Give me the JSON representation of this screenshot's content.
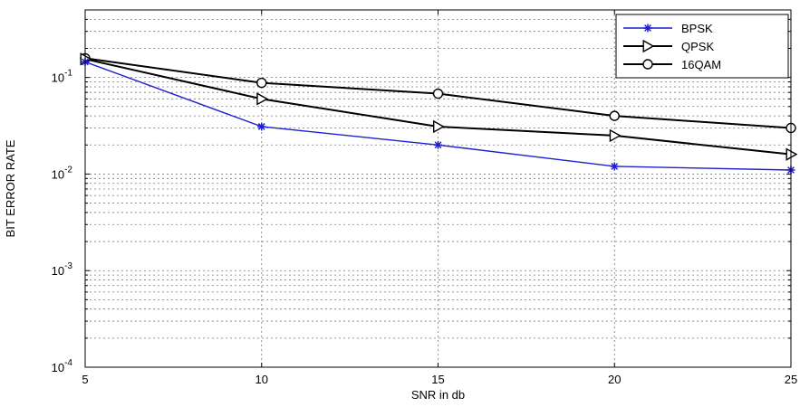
{
  "chart_data": {
    "type": "line",
    "title": "",
    "xlabel": "SNR in db",
    "ylabel": "BIT ERROR RATE",
    "x": [
      5,
      10,
      15,
      20,
      25
    ],
    "xlim": [
      5,
      25
    ],
    "ylim": [
      0.0001,
      0.5
    ],
    "yscale": "log",
    "grid": true,
    "legend": "top-right",
    "x_ticks": [
      5,
      10,
      15,
      20,
      25
    ],
    "y_ticks": [
      {
        "value": 0.1,
        "base": "10",
        "exp": "-1"
      },
      {
        "value": 0.01,
        "base": "10",
        "exp": "-2"
      },
      {
        "value": 0.001,
        "base": "10",
        "exp": "-3"
      },
      {
        "value": 0.0001,
        "base": "10",
        "exp": "-4"
      }
    ],
    "series": [
      {
        "name": "BPSK",
        "values": [
          0.145,
          0.031,
          0.02,
          0.012,
          0.011
        ],
        "color": "#1f1fd0",
        "marker": "star"
      },
      {
        "name": "QPSK",
        "values": [
          0.155,
          0.06,
          0.031,
          0.025,
          0.016
        ],
        "color": "#000000",
        "marker": "triangle-right"
      },
      {
        "name": "16QAM",
        "values": [
          0.158,
          0.088,
          0.068,
          0.04,
          0.03
        ],
        "color": "#000000",
        "marker": "circle"
      }
    ]
  }
}
